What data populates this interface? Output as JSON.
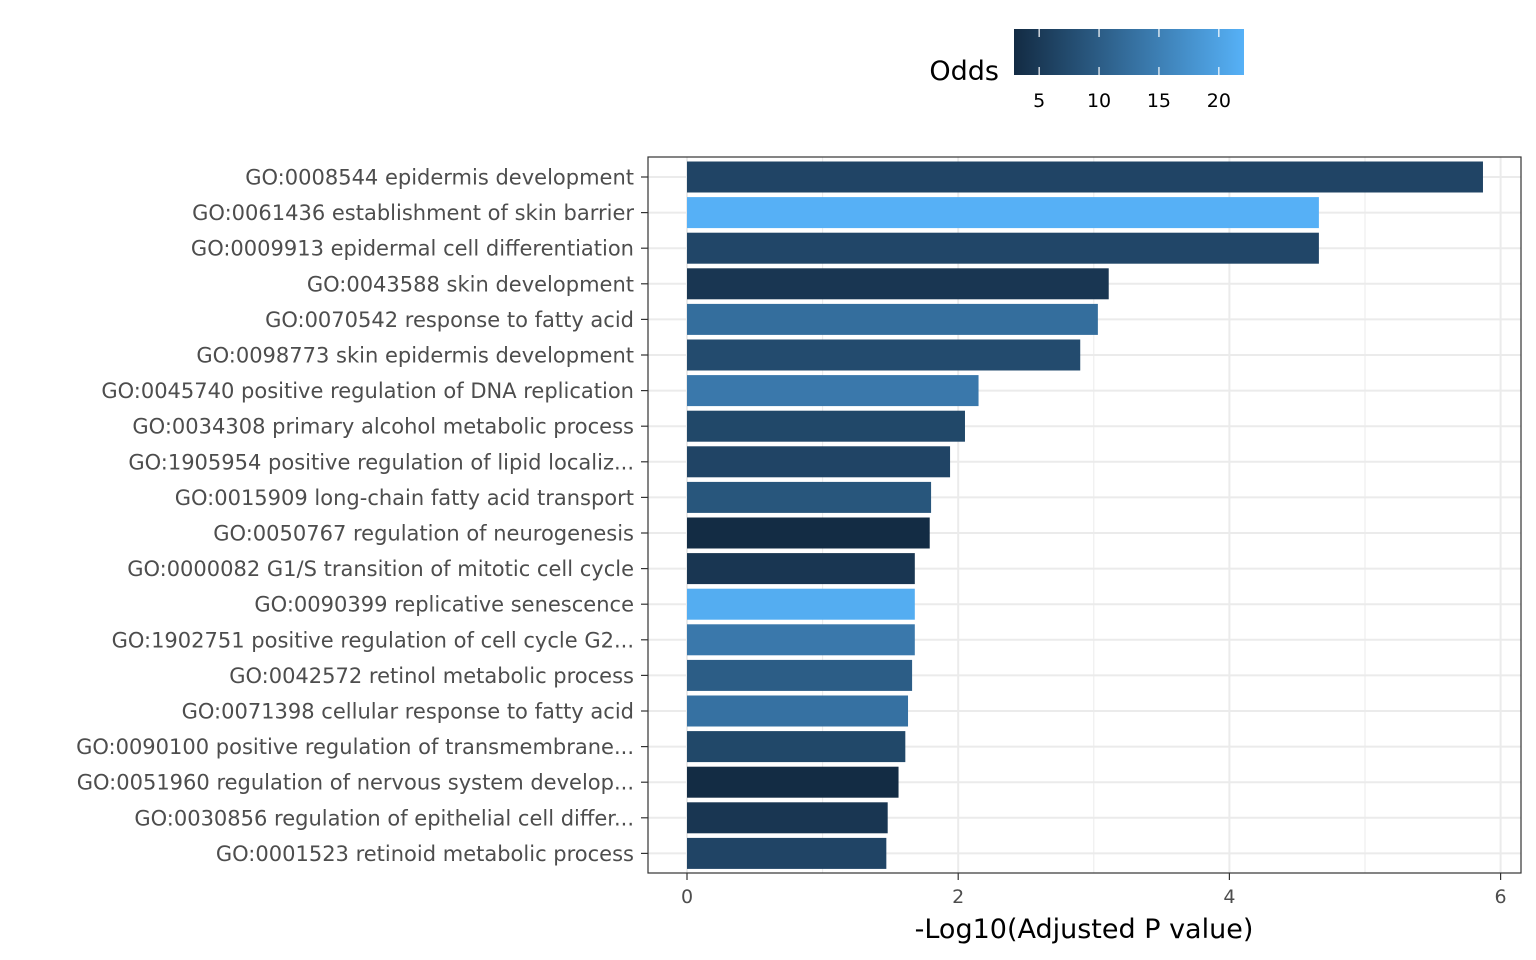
{
  "chart_data": {
    "type": "bar",
    "orientation": "horizontal",
    "xlabel": "-Log10(Adjusted P value)",
    "ylabel": "",
    "xlim": [
      0,
      6
    ],
    "x_ticks": [
      0,
      2,
      4,
      6
    ],
    "grid": true,
    "legend": {
      "title": "Odds",
      "placement": "top",
      "ticks": [
        5,
        10,
        15,
        20
      ],
      "range": [
        2.9,
        22.1
      ],
      "color_low": "#132B43",
      "color_high": "#56B1F7"
    },
    "categories": [
      "GO:0008544 epidermis development",
      "GO:0061436 establishment of skin barrier",
      "GO:0009913 epidermal cell differentiation",
      "GO:0043588 skin development",
      "GO:0070542 response to fatty acid",
      "GO:0098773 skin epidermis development",
      "GO:0045740 positive regulation of DNA replication",
      "GO:0034308 primary alcohol metabolic process",
      "GO:1905954 positive regulation of lipid localiz...",
      "GO:0015909 long-chain fatty acid transport",
      "GO:0050767 regulation of neurogenesis",
      "GO:0000082 G1/S transition of mitotic cell cycle",
      "GO:0090399 replicative senescence",
      "GO:1902751 positive regulation of cell cycle G2...",
      "GO:0042572 retinol metabolic process",
      "GO:0071398 cellular response to fatty acid",
      "GO:0090100 positive regulation of transmembrane...",
      "GO:0051960 regulation of nervous system develop...",
      "GO:0030856 regulation of epithelial cell differ...",
      "GO:0001523 retinoid metabolic process"
    ],
    "values": [
      5.87,
      4.66,
      4.66,
      3.11,
      3.03,
      2.9,
      2.15,
      2.05,
      1.94,
      1.8,
      1.79,
      1.68,
      1.68,
      1.68,
      1.66,
      1.63,
      1.61,
      1.56,
      1.48,
      1.47
    ],
    "odds": [
      6.5,
      22.0,
      6.8,
      4.5,
      12.5,
      7.5,
      14.0,
      7.0,
      6.5,
      9.0,
      3.0,
      4.5,
      21.5,
      14.0,
      10.0,
      13.0,
      7.0,
      3.0,
      4.5,
      6.5
    ]
  }
}
